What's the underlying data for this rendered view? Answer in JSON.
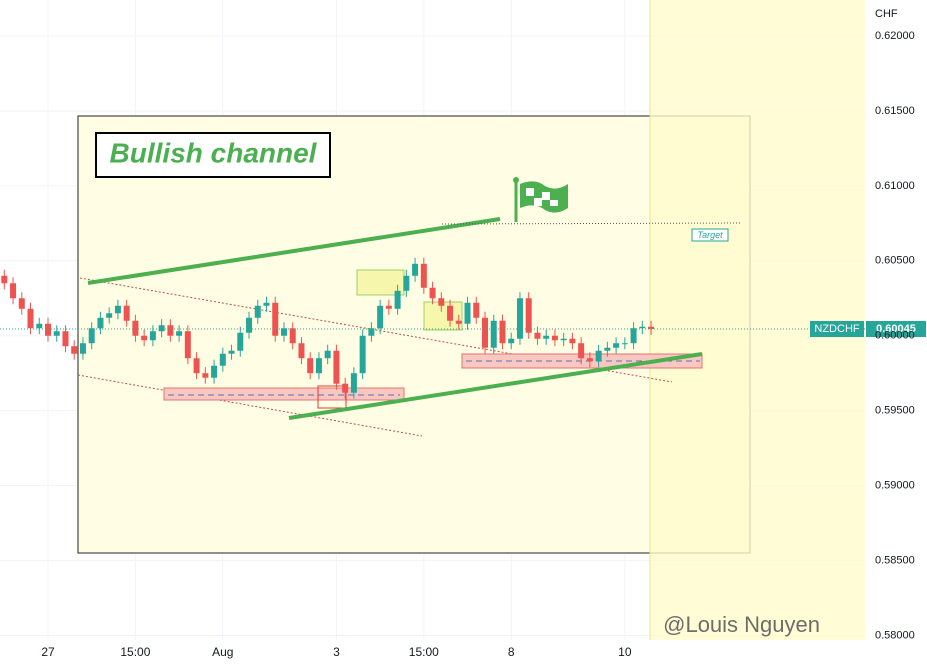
{
  "chart_data": {
    "type": "candlestick",
    "title": "Bullish channel",
    "annotation": "Target",
    "symbol": "NZDCHF",
    "last_price_label": "0.60045",
    "y_unit": "CHF",
    "watermark": "@Louis Nguyen",
    "up_color": "#26a69a",
    "down_color": "#ef5350",
    "categories": [
      null,
      null,
      null,
      null,
      null,
      "27",
      null,
      null,
      null,
      null,
      null,
      null,
      null,
      null,
      null,
      "15:00",
      null,
      null,
      null,
      null,
      null,
      null,
      null,
      null,
      null,
      "Aug",
      null,
      null,
      null,
      null,
      null,
      null,
      null,
      null,
      null,
      null,
      null,
      null,
      "3",
      null,
      null,
      null,
      null,
      null,
      null,
      null,
      null,
      null,
      "15:00",
      null,
      null,
      null,
      null,
      null,
      null,
      null,
      null,
      null,
      "8",
      null,
      null,
      null,
      null,
      null,
      null,
      null,
      null,
      null,
      null,
      null,
      null,
      "10",
      null,
      null,
      null
    ],
    "open": [
      0.604,
      0.6035,
      0.6025,
      0.6018,
      0.6005,
      0.6008,
      0.6,
      0.6003,
      0.5993,
      0.5988,
      0.5995,
      0.6005,
      0.6012,
      0.6015,
      0.602,
      0.601,
      0.6,
      0.5997,
      0.6003,
      0.6007,
      0.6,
      0.6003,
      0.5985,
      0.5975,
      0.5972,
      0.598,
      0.5988,
      0.599,
      0.6002,
      0.6012,
      0.602,
      0.6022,
      0.6,
      0.6005,
      0.5995,
      0.5985,
      0.5975,
      0.5985,
      0.599,
      0.5968,
      0.5962,
      0.5975,
      0.6,
      0.6005,
      0.602,
      0.6018,
      0.603,
      0.604,
      0.6048,
      0.6032,
      0.6025,
      0.602,
      0.601,
      0.6008,
      0.6022,
      0.6012,
      0.5992,
      0.601,
      0.5995,
      0.5998,
      0.6025,
      0.6002,
      0.5998,
      0.6,
      0.5997,
      0.5998,
      0.5995,
      0.5985,
      0.5983,
      0.599,
      0.5992,
      0.5995,
      0.5995,
      0.6005,
      0.6006
    ],
    "high": [
      0.6044,
      0.6039,
      0.6029,
      0.6022,
      0.6012,
      0.6012,
      0.6007,
      0.6007,
      0.5997,
      0.5999,
      0.6009,
      0.6016,
      0.6019,
      0.6024,
      0.6024,
      0.6014,
      0.6004,
      0.6007,
      0.6011,
      0.6011,
      0.6007,
      0.6007,
      0.5989,
      0.5979,
      0.5984,
      0.5992,
      0.5994,
      0.6006,
      0.6016,
      0.6024,
      0.6026,
      0.6026,
      0.6009,
      0.6009,
      0.5999,
      0.5989,
      0.5989,
      0.5994,
      0.5994,
      0.5972,
      0.5979,
      0.6004,
      0.6009,
      0.6024,
      0.6024,
      0.6034,
      0.6044,
      0.6052,
      0.6052,
      0.6036,
      0.6029,
      0.6024,
      0.6014,
      0.6026,
      0.6026,
      0.6016,
      0.6014,
      0.6014,
      0.6002,
      0.6029,
      0.6029,
      0.6006,
      0.6004,
      0.6004,
      0.6002,
      0.6002,
      0.5999,
      0.5989,
      0.5994,
      0.5996,
      0.5999,
      0.5999,
      0.6009,
      0.601,
      0.601
    ],
    "low": [
      0.6031,
      0.6021,
      0.6014,
      0.6001,
      0.6001,
      0.5996,
      0.5996,
      0.5989,
      0.5984,
      0.5984,
      0.5991,
      0.6001,
      0.6008,
      0.6011,
      0.6006,
      0.5996,
      0.5993,
      0.5993,
      0.5999,
      0.5996,
      0.5996,
      0.5981,
      0.5971,
      0.5968,
      0.5968,
      0.5976,
      0.5984,
      0.5986,
      0.5998,
      0.6008,
      0.6016,
      0.5996,
      0.5996,
      0.5991,
      0.5981,
      0.5971,
      0.5971,
      0.5981,
      0.5964,
      0.5958,
      0.5958,
      0.5971,
      0.5996,
      0.6001,
      0.6014,
      0.6014,
      0.6026,
      0.6036,
      0.6028,
      0.6021,
      0.6016,
      0.6006,
      0.6004,
      0.6004,
      0.6008,
      0.5988,
      0.5988,
      0.5991,
      0.5991,
      0.5994,
      0.5998,
      0.5994,
      0.5994,
      0.5993,
      0.5993,
      0.5991,
      0.5981,
      0.5979,
      0.5979,
      0.5986,
      0.5988,
      0.5991,
      0.5991,
      0.6001,
      0.60005
    ],
    "close": [
      0.6035,
      0.6025,
      0.6018,
      0.6005,
      0.6008,
      0.6,
      0.6003,
      0.5993,
      0.5988,
      0.5995,
      0.6005,
      0.6012,
      0.6015,
      0.602,
      0.601,
      0.6,
      0.5997,
      0.6003,
      0.6007,
      0.6,
      0.6003,
      0.5985,
      0.5975,
      0.5972,
      0.598,
      0.5988,
      0.599,
      0.6002,
      0.6012,
      0.602,
      0.6022,
      0.6,
      0.6005,
      0.5995,
      0.5985,
      0.5975,
      0.5985,
      0.599,
      0.5968,
      0.5962,
      0.5975,
      0.6,
      0.6005,
      0.602,
      0.6018,
      0.603,
      0.604,
      0.6048,
      0.6032,
      0.6025,
      0.602,
      0.601,
      0.6008,
      0.6022,
      0.6012,
      0.5992,
      0.601,
      0.5995,
      0.5998,
      0.6025,
      0.6002,
      0.5998,
      0.6,
      0.5997,
      0.5998,
      0.5995,
      0.5985,
      0.5983,
      0.599,
      0.5992,
      0.5995,
      0.5995,
      0.6005,
      0.6006,
      0.60045
    ],
    "ylim": [
      0.5797,
      0.6224
    ],
    "yticks": [
      {
        "value": 0.58,
        "label": "0.58000"
      },
      {
        "value": 0.585,
        "label": "0.58500"
      },
      {
        "value": 0.59,
        "label": "0.59000"
      },
      {
        "value": 0.595,
        "label": "0.59500"
      },
      {
        "value": 0.6,
        "label": "0.60000"
      },
      {
        "value": 0.605,
        "label": "0.60500"
      },
      {
        "value": 0.61,
        "label": "0.61000"
      },
      {
        "value": 0.615,
        "label": "0.61500"
      },
      {
        "value": 0.62,
        "label": "0.62000"
      }
    ],
    "grid": true
  }
}
